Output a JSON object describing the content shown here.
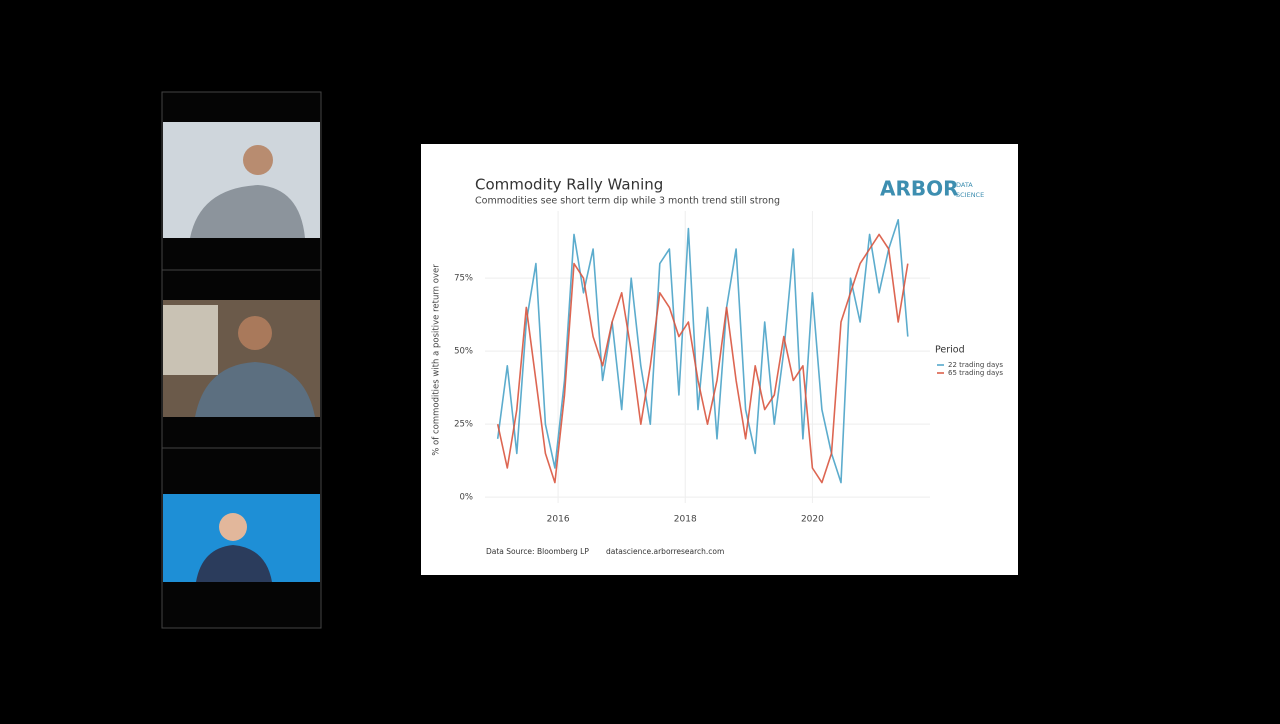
{
  "chart_data": {
    "type": "line",
    "title": "Commodity Rally Waning",
    "subtitle": "Commodities see short term dip while 3 month trend still strong",
    "y_label": "% of commodities with a positive return over",
    "logo_name": "ARBOR",
    "logo_tagline": [
      "DATA",
      "SCIENCE"
    ],
    "legend_title": "Period",
    "source_note": "Data Source: Bloomberg LP",
    "source_url": "datascience.arborresearch.com",
    "x": [
      2015.05,
      2015.2,
      2015.35,
      2015.5,
      2015.65,
      2015.8,
      2015.95,
      2016.1,
      2016.25,
      2016.4,
      2016.55,
      2016.7,
      2016.85,
      2017,
      2017.15,
      2017.3,
      2017.45,
      2017.6,
      2017.75,
      2017.9,
      2018.05,
      2018.2,
      2018.35,
      2018.5,
      2018.65,
      2018.8,
      2018.95,
      2019.1,
      2019.25,
      2019.4,
      2019.55,
      2019.7,
      2019.85,
      2020,
      2020.15,
      2020.3,
      2020.45,
      2020.6,
      2020.75,
      2020.9,
      2021.05,
      2021.2,
      2021.35,
      2021.5
    ],
    "series": [
      {
        "name": "22 trading days",
        "color": "#4aa3c8",
        "values": [
          20,
          45,
          15,
          60,
          80,
          25,
          10,
          40,
          90,
          70,
          85,
          40,
          60,
          30,
          75,
          45,
          25,
          80,
          85,
          35,
          92,
          30,
          65,
          20,
          65,
          85,
          30,
          15,
          60,
          25,
          50,
          85,
          20,
          70,
          30,
          15,
          5,
          75,
          60,
          90,
          70,
          85,
          95,
          55
        ]
      },
      {
        "name": "65 trading days",
        "color": "#d9553f",
        "values": [
          25,
          10,
          30,
          65,
          40,
          15,
          5,
          35,
          80,
          75,
          55,
          45,
          60,
          70,
          50,
          25,
          45,
          70,
          65,
          55,
          60,
          40,
          25,
          40,
          65,
          40,
          20,
          45,
          30,
          35,
          55,
          40,
          45,
          10,
          5,
          15,
          60,
          70,
          80,
          85,
          90,
          85,
          60,
          80
        ]
      }
    ],
    "xlim": [
      2014.85,
      2021.85
    ],
    "xticks": [
      2016,
      2018,
      2020
    ],
    "ylim": [
      -2,
      98
    ],
    "yticks": [
      {
        "value": 0,
        "label": "0%"
      },
      {
        "value": 25,
        "label": "25%"
      },
      {
        "value": 50,
        "label": "50%"
      },
      {
        "value": 75,
        "label": "75%"
      }
    ],
    "grid": true
  }
}
